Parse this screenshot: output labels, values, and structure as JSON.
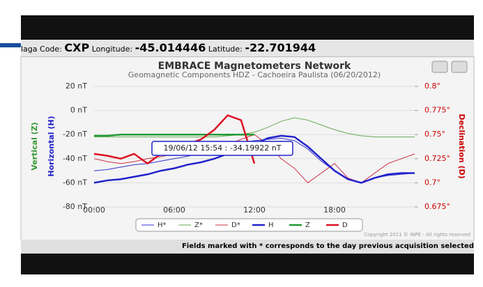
{
  "header": {
    "code_label": "laga Code:",
    "code": "CXP",
    "lon_label": "Longitude:",
    "lon": "-45.014446",
    "lat_label": "Latitude:",
    "lat": "-22.701944"
  },
  "footer": "Fields marked with * corresponds to the day previous acquisition selected",
  "chart_data": {
    "type": "line",
    "title": "EMBRACE Magnetometers Network",
    "subtitle": "Geomagnetic Components HDZ - Cachoeira Paulista (06/20/2012)",
    "y_label_z": "Vertical (Z)",
    "y_label": "Horizontal (H)",
    "y2_label": "Declination (D)",
    "annotation": "19/06/12 15:54 : -34.19922 nT",
    "copyright": "Copyright 2011 © INPE - All rights reserved",
    "x": [
      0,
      1,
      2,
      3,
      4,
      5,
      6,
      7,
      8,
      9,
      10,
      11,
      12,
      13,
      14,
      15,
      16,
      17,
      18,
      19,
      20,
      21,
      22,
      23,
      24
    ],
    "xlim": [
      0,
      24
    ],
    "xticks": [
      {
        "value": 0,
        "label": "00:00"
      },
      {
        "value": 6,
        "label": "06:00"
      },
      {
        "value": 12,
        "label": "12:00"
      },
      {
        "value": 18,
        "label": "18:00"
      }
    ],
    "ylim": [
      -80,
      20
    ],
    "yticks": [
      {
        "value": 20,
        "label": "20 nT"
      },
      {
        "value": 0,
        "label": "0 nT"
      },
      {
        "value": -20,
        "label": "-20 nT"
      },
      {
        "value": -40,
        "label": "-40 nT"
      },
      {
        "value": -60,
        "label": "-60 nT"
      },
      {
        "value": -80,
        "label": "-80 nT"
      }
    ],
    "y2lim": [
      0.675,
      0.8
    ],
    "y2ticks": [
      {
        "value": 0.8,
        "label": "0.8°"
      },
      {
        "value": 0.775,
        "label": "0.775°"
      },
      {
        "value": 0.75,
        "label": "0.75°"
      },
      {
        "value": 0.725,
        "label": "0.725°"
      },
      {
        "value": 0.7,
        "label": "0.7°"
      },
      {
        "value": 0.675,
        "label": "0.675°"
      }
    ],
    "series": [
      {
        "name": "H*",
        "color": "#3333cc",
        "width": 1,
        "values": [
          -50,
          -49,
          -47,
          -45,
          -44,
          -42,
          -40,
          -38,
          -35,
          -32,
          -30,
          -27,
          -25,
          -24,
          -23,
          -25,
          -32,
          -42,
          -50,
          -57,
          -60,
          -56,
          -54,
          -53,
          -52
        ]
      },
      {
        "name": "Z*",
        "color": "#66aa55",
        "width": 1,
        "values": [
          -22,
          -22,
          -22,
          -22,
          -22,
          -22,
          -22,
          -22,
          -22,
          -22,
          -21,
          -20,
          -18,
          -14,
          -9,
          -6,
          -8,
          -12,
          -16,
          -19,
          -21,
          -22,
          -22,
          -22,
          -22
        ]
      },
      {
        "name": "D*",
        "color": "#cc3344",
        "width": 1,
        "axis": "y2",
        "values": [
          0.725,
          0.722,
          0.72,
          0.722,
          0.725,
          0.727,
          0.73,
          0.733,
          0.735,
          0.738,
          0.74,
          0.745,
          0.75,
          0.74,
          0.725,
          0.715,
          0.7,
          0.71,
          0.72,
          0.705,
          0.7,
          0.71,
          0.72,
          0.725,
          0.73
        ]
      },
      {
        "name": "H",
        "color": "#2222cc",
        "width": 2.5,
        "values": [
          -60,
          -58,
          -57,
          -55,
          -53,
          -50,
          -48,
          -45,
          -43,
          -40,
          -36,
          -32,
          -28,
          -23,
          -21,
          -22,
          -30,
          -40,
          -50,
          -57,
          -60,
          -56,
          -53,
          -52,
          -52
        ]
      },
      {
        "name": "Z",
        "color": "#229933",
        "width": 2.5,
        "values": [
          -21,
          -21,
          -20,
          -20,
          -20,
          -20,
          -20,
          -20,
          -20,
          -20,
          -20,
          -20,
          -20,
          null,
          null,
          null,
          null,
          null,
          null,
          null,
          null,
          null,
          null,
          null,
          null
        ]
      },
      {
        "name": "D",
        "color": "#dd1122",
        "width": 2.5,
        "axis": "y2",
        "values": [
          0.73,
          0.728,
          0.725,
          0.73,
          0.72,
          0.73,
          0.735,
          0.74,
          0.745,
          0.755,
          0.77,
          0.765,
          0.72,
          null,
          null,
          null,
          null,
          null,
          null,
          null,
          null,
          null,
          null,
          null,
          null
        ]
      }
    ]
  }
}
